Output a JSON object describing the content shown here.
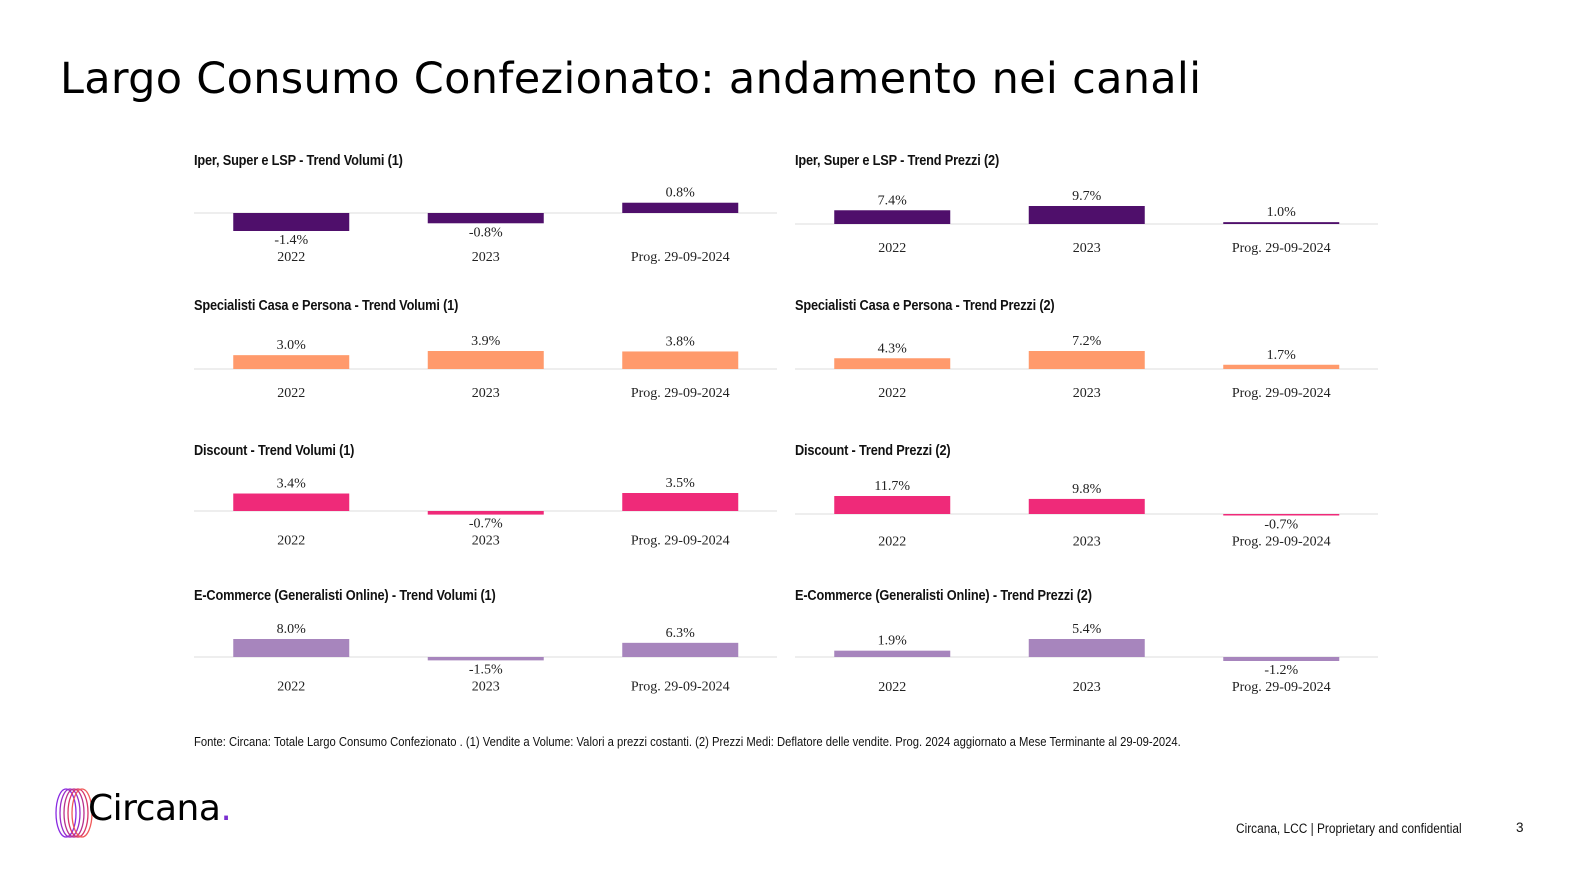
{
  "page": {
    "title": "Largo Consumo Confezionato: andamento nei canali",
    "footnote": "Fonte: Circana: Totale Largo Consumo Confezionato . (1) Vendite a Volume: Valori a prezzi costanti. (2) Prezzi Medi: Deflatore delle vendite. Prog. 2024 aggiornato a Mese Terminante al 29-09-2024.",
    "footer": "Circana, LCC |  Proprietary and confidential",
    "page_number": "3",
    "logo": {
      "text": "Circana",
      "dot": ".",
      "icon": "circana-rings-logo-icon"
    }
  },
  "colors": {
    "iper": "#4f0f6b",
    "specialisti": "#ff9a6c",
    "discount": "#ef2a79",
    "ecommerce": "#a785bd",
    "baseline": "#e3e3e3"
  },
  "chart_data": [
    {
      "type": "bar",
      "id": "iper-volumi",
      "title": "Iper, Super e LSP - Trend Volumi (1)",
      "color_key": "iper",
      "categories": [
        "2022",
        "2023",
        "Prog. 29-09-2024"
      ],
      "values": [
        -1.4,
        -0.8,
        0.8
      ],
      "labels": [
        "-1.4%",
        "-0.8%",
        "0.8%"
      ],
      "xlabel": "",
      "ylabel": ""
    },
    {
      "type": "bar",
      "id": "iper-prezzi",
      "title": "Iper, Super e LSP - Trend Prezzi (2)",
      "color_key": "iper",
      "categories": [
        "2022",
        "2023",
        "Prog. 29-09-2024"
      ],
      "values": [
        7.4,
        9.7,
        1.0
      ],
      "labels": [
        "7.4%",
        "9.7%",
        "1.0%"
      ],
      "xlabel": "",
      "ylabel": ""
    },
    {
      "type": "bar",
      "id": "specialisti-volumi",
      "title": "Specialisti Casa e Persona - Trend Volumi (1)",
      "color_key": "specialisti",
      "categories": [
        "2022",
        "2023",
        "Prog. 29-09-2024"
      ],
      "values": [
        3.0,
        3.9,
        3.8
      ],
      "labels": [
        "3.0%",
        "3.9%",
        "3.8%"
      ],
      "xlabel": "",
      "ylabel": ""
    },
    {
      "type": "bar",
      "id": "specialisti-prezzi",
      "title": "Specialisti Casa e Persona - Trend Prezzi (2)",
      "color_key": "specialisti",
      "categories": [
        "2022",
        "2023",
        "Prog. 29-09-2024"
      ],
      "values": [
        4.3,
        7.2,
        1.7
      ],
      "labels": [
        "4.3%",
        "7.2%",
        "1.7%"
      ],
      "xlabel": "",
      "ylabel": ""
    },
    {
      "type": "bar",
      "id": "discount-volumi",
      "title": "Discount - Trend Volumi (1)",
      "color_key": "discount",
      "categories": [
        "2022",
        "2023",
        "Prog. 29-09-2024"
      ],
      "values": [
        3.4,
        -0.7,
        3.5
      ],
      "labels": [
        "3.4%",
        "-0.7%",
        "3.5%"
      ],
      "xlabel": "",
      "ylabel": ""
    },
    {
      "type": "bar",
      "id": "discount-prezzi",
      "title": "Discount - Trend Prezzi (2)",
      "color_key": "discount",
      "categories": [
        "2022",
        "2023",
        "Prog. 29-09-2024"
      ],
      "values": [
        11.7,
        9.8,
        -0.7
      ],
      "labels": [
        "11.7%",
        "9.8%",
        "-0.7%"
      ],
      "xlabel": "",
      "ylabel": ""
    },
    {
      "type": "bar",
      "id": "ecommerce-volumi",
      "title": "E-Commerce (Generalisti Online) - Trend Volumi (1)",
      "color_key": "ecommerce",
      "categories": [
        "2022",
        "2023",
        "Prog. 29-09-2024"
      ],
      "values": [
        8.0,
        -1.5,
        6.3
      ],
      "labels": [
        "8.0%",
        "-1.5%",
        "6.3%"
      ],
      "xlabel": "",
      "ylabel": ""
    },
    {
      "type": "bar",
      "id": "ecommerce-prezzi",
      "title": "E-Commerce (Generalisti Online) - Trend Prezzi (2)",
      "color_key": "ecommerce",
      "categories": [
        "2022",
        "2023",
        "Prog. 29-09-2024"
      ],
      "values": [
        1.9,
        5.4,
        -1.2
      ],
      "labels": [
        "1.9%",
        "5.4%",
        "-1.2%"
      ],
      "xlabel": "",
      "ylabel": ""
    }
  ]
}
